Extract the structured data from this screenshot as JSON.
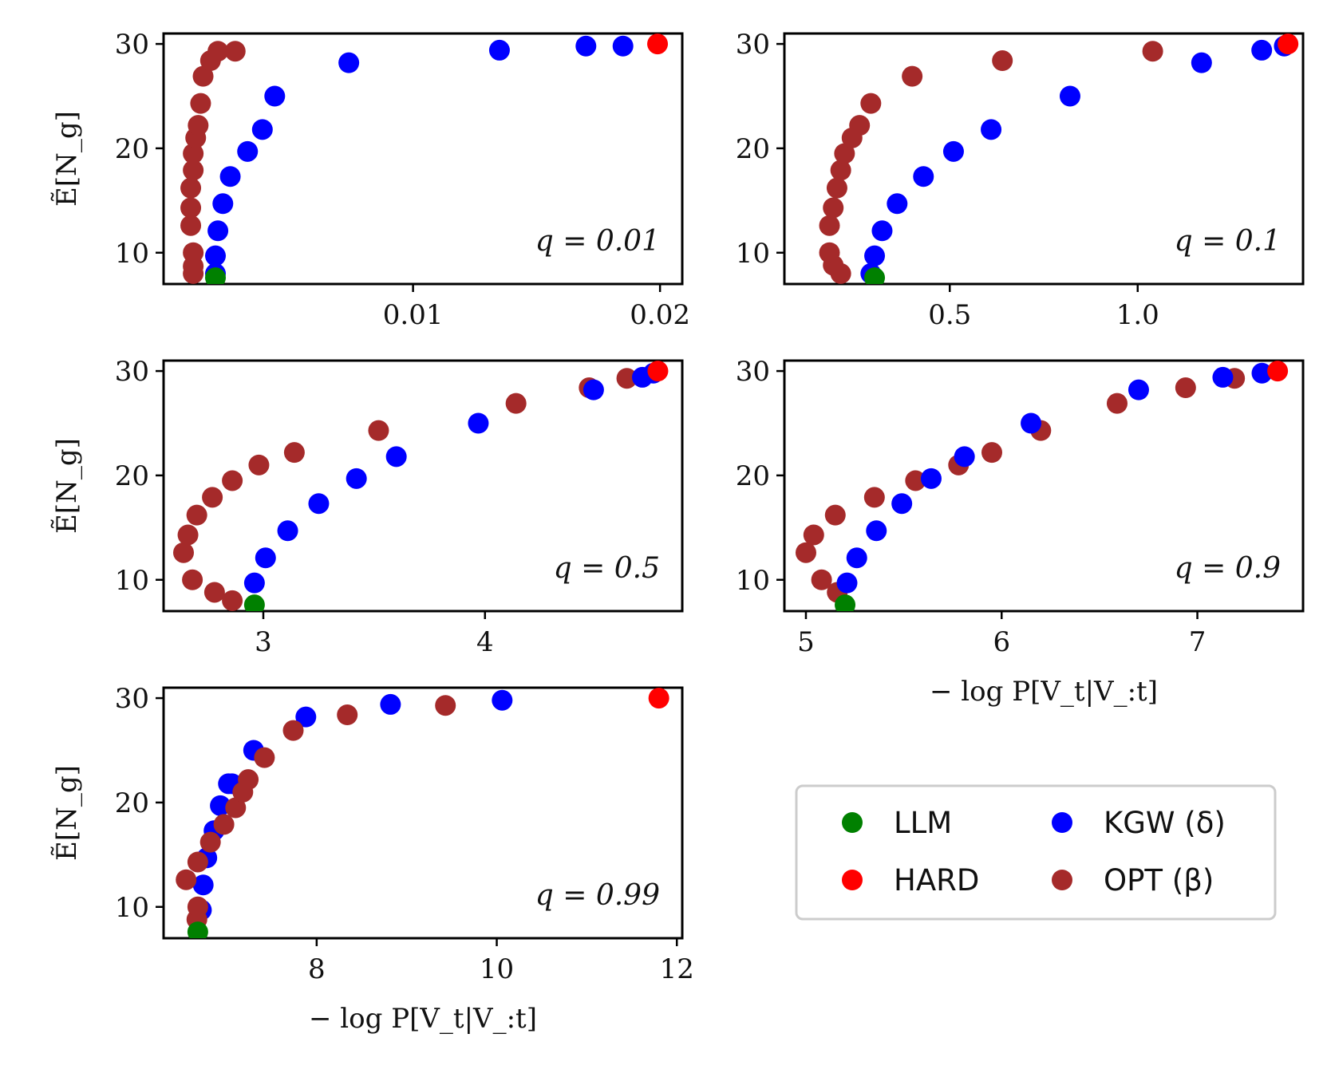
{
  "legend": {
    "entries": [
      {
        "name": "LLM",
        "color": "#008000"
      },
      {
        "name": "HARD",
        "color": "#ff0000"
      },
      {
        "name": "KGW (δ)",
        "color": "#0000ff"
      },
      {
        "name": "OPT (β)",
        "color": "#a52a2a"
      }
    ]
  },
  "chart_data": [
    {
      "type": "scatter",
      "title": "q = 0.01",
      "xlabel": "",
      "ylabel": "Ẽ[N_g]",
      "xlim": [
        -0.0001,
        0.0209
      ],
      "ylim": [
        7,
        31
      ],
      "xticks": [
        0.01,
        0.02
      ],
      "xtick_labels": [
        "0.01",
        "0.02"
      ],
      "yticks": [
        10,
        20,
        30
      ],
      "yticklabels": [
        "10",
        "20",
        "30"
      ],
      "series": [
        {
          "name": "OPT (β)",
          "color": "#a52a2a",
          "x": [
            0.0011,
            0.0011,
            0.0011,
            0.001,
            0.001,
            0.001,
            0.0011,
            0.0011,
            0.0012,
            0.0013,
            0.0014,
            0.0015,
            0.0018,
            0.0021,
            0.0028
          ],
          "y": [
            8.0,
            8.7,
            10.0,
            12.6,
            14.3,
            16.2,
            17.9,
            19.5,
            21.0,
            22.2,
            24.3,
            26.9,
            28.4,
            29.3,
            29.3
          ]
        },
        {
          "name": "KGW (δ)",
          "color": "#0000ff",
          "x": [
            0.002,
            0.002,
            0.0021,
            0.0023,
            0.0026,
            0.0033,
            0.0039,
            0.0044,
            0.0074,
            0.0135,
            0.017,
            0.0185
          ],
          "y": [
            8.0,
            9.7,
            12.1,
            14.7,
            17.3,
            19.7,
            21.8,
            25.0,
            28.2,
            29.4,
            29.8,
            29.8
          ]
        },
        {
          "name": "LLM",
          "color": "#008000",
          "x": [
            0.002
          ],
          "y": [
            7.6
          ]
        },
        {
          "name": "HARD",
          "color": "#ff0000",
          "x": [
            0.0199
          ],
          "y": [
            30.0
          ]
        }
      ]
    },
    {
      "type": "scatter",
      "title": "q = 0.1",
      "xlabel": "",
      "ylabel": "",
      "xlim": [
        0.06,
        1.44
      ],
      "ylim": [
        7,
        31
      ],
      "xticks": [
        0.5,
        1.0
      ],
      "xtick_labels": [
        "0.5",
        "1.0"
      ],
      "yticks": [
        10,
        20,
        30
      ],
      "yticklabels": [
        "10",
        "20",
        "30"
      ],
      "series": [
        {
          "name": "OPT (β)",
          "color": "#a52a2a",
          "x": [
            0.21,
            0.19,
            0.18,
            0.18,
            0.19,
            0.2,
            0.21,
            0.22,
            0.24,
            0.26,
            0.29,
            0.4,
            0.64,
            1.04
          ],
          "y": [
            8.0,
            8.8,
            10.0,
            12.6,
            14.3,
            16.2,
            17.9,
            19.5,
            21.0,
            22.2,
            24.3,
            26.9,
            28.4,
            29.3
          ]
        },
        {
          "name": "KGW (δ)",
          "color": "#0000ff",
          "x": [
            0.29,
            0.3,
            0.32,
            0.36,
            0.43,
            0.51,
            0.61,
            0.82,
            1.17,
            1.33,
            1.39
          ],
          "y": [
            8.0,
            9.7,
            12.1,
            14.7,
            17.3,
            19.7,
            21.8,
            25.0,
            28.2,
            29.4,
            29.8
          ]
        },
        {
          "name": "LLM",
          "color": "#008000",
          "x": [
            0.3
          ],
          "y": [
            7.6
          ]
        },
        {
          "name": "HARD",
          "color": "#ff0000",
          "x": [
            1.4
          ],
          "y": [
            30.0
          ]
        }
      ]
    },
    {
      "type": "scatter",
      "title": "q = 0.5",
      "xlabel": "",
      "ylabel": "Ẽ[N_g]",
      "xlim": [
        2.55,
        4.89
      ],
      "ylim": [
        7,
        31
      ],
      "xticks": [
        3,
        4
      ],
      "xtick_labels": [
        "3",
        "4"
      ],
      "yticks": [
        10,
        20,
        30
      ],
      "yticklabels": [
        "10",
        "20",
        "30"
      ],
      "series": [
        {
          "name": "OPT (β)",
          "color": "#a52a2a",
          "x": [
            2.86,
            2.78,
            2.68,
            2.64,
            2.66,
            2.7,
            2.77,
            2.86,
            2.98,
            3.14,
            3.52,
            4.14,
            4.47,
            4.64
          ],
          "y": [
            8.0,
            8.8,
            10.0,
            12.6,
            14.3,
            16.2,
            17.9,
            19.5,
            21.0,
            22.2,
            24.3,
            26.9,
            28.4,
            29.3
          ]
        },
        {
          "name": "KGW (δ)",
          "color": "#0000ff",
          "x": [
            2.96,
            3.01,
            3.11,
            3.25,
            3.42,
            3.6,
            3.97,
            4.49,
            4.71,
            4.76
          ],
          "y": [
            9.7,
            12.1,
            14.7,
            17.3,
            19.7,
            21.8,
            25.0,
            28.2,
            29.4,
            29.8
          ]
        },
        {
          "name": "LLM",
          "color": "#008000",
          "x": [
            2.96
          ],
          "y": [
            7.6
          ]
        },
        {
          "name": "HARD",
          "color": "#ff0000",
          "x": [
            4.78
          ],
          "y": [
            30.0
          ]
        }
      ]
    },
    {
      "type": "scatter",
      "title": "q = 0.9",
      "xlabel": "− log P[V_t|V_:t]",
      "ylabel": "",
      "xlim": [
        4.89,
        7.54
      ],
      "ylim": [
        7,
        31
      ],
      "xticks": [
        5,
        6,
        7
      ],
      "xtick_labels": [
        "5",
        "6",
        "7"
      ],
      "yticks": [
        10,
        20,
        30
      ],
      "yticklabels": [
        "10",
        "20",
        "30"
      ],
      "series": [
        {
          "name": "OPT (β)",
          "color": "#a52a2a",
          "x": [
            5.16,
            5.08,
            5.0,
            5.04,
            5.15,
            5.35,
            5.56,
            5.78,
            5.95,
            6.2,
            6.59,
            6.94,
            7.19
          ],
          "y": [
            8.8,
            10.0,
            12.6,
            14.3,
            16.2,
            17.9,
            19.5,
            21.0,
            22.2,
            24.3,
            26.9,
            28.4,
            29.3
          ]
        },
        {
          "name": "KGW (δ)",
          "color": "#0000ff",
          "x": [
            5.21,
            5.26,
            5.36,
            5.49,
            5.64,
            5.81,
            6.15,
            6.7,
            7.13,
            7.33
          ],
          "y": [
            9.7,
            12.1,
            14.7,
            17.3,
            19.7,
            21.8,
            25.0,
            28.2,
            29.4,
            29.8
          ]
        },
        {
          "name": "LLM",
          "color": "#008000",
          "x": [
            5.2
          ],
          "y": [
            7.6
          ]
        },
        {
          "name": "HARD",
          "color": "#ff0000",
          "x": [
            7.41
          ],
          "y": [
            30.0
          ]
        }
      ]
    },
    {
      "type": "scatter",
      "title": "q = 0.99",
      "xlabel": "− log P[V_t|V_:t]",
      "ylabel": "Ẽ[N_g]",
      "xlim": [
        6.3,
        12.06
      ],
      "ylim": [
        7,
        31
      ],
      "xticks": [
        8,
        10,
        12
      ],
      "xtick_labels": [
        "8",
        "10",
        "12"
      ],
      "yticks": [
        10,
        20,
        30
      ],
      "yticklabels": [
        "10",
        "20",
        "30"
      ],
      "series": [
        {
          "name": "KGW (δ)",
          "color": "#0000ff",
          "x": [
            6.72,
            6.74,
            6.78,
            6.86,
            6.93,
            7.02,
            7.06,
            7.3,
            7.88,
            8.82,
            10.06
          ],
          "y": [
            9.7,
            12.1,
            14.7,
            17.3,
            19.7,
            21.8,
            21.8,
            25.0,
            28.2,
            29.4,
            29.8
          ]
        },
        {
          "name": "OPT (β)",
          "color": "#a52a2a",
          "x": [
            6.67,
            6.68,
            6.55,
            6.68,
            6.82,
            6.97,
            7.1,
            7.18,
            7.24,
            7.42,
            7.74,
            8.34,
            9.43
          ],
          "y": [
            8.8,
            10.0,
            12.6,
            14.3,
            16.2,
            17.9,
            19.5,
            21.0,
            22.2,
            24.3,
            26.9,
            28.4,
            29.3
          ]
        },
        {
          "name": "LLM",
          "color": "#008000",
          "x": [
            6.68
          ],
          "y": [
            7.6
          ]
        },
        {
          "name": "HARD",
          "color": "#ff0000",
          "x": [
            11.8
          ],
          "y": [
            30.0
          ]
        }
      ]
    }
  ]
}
